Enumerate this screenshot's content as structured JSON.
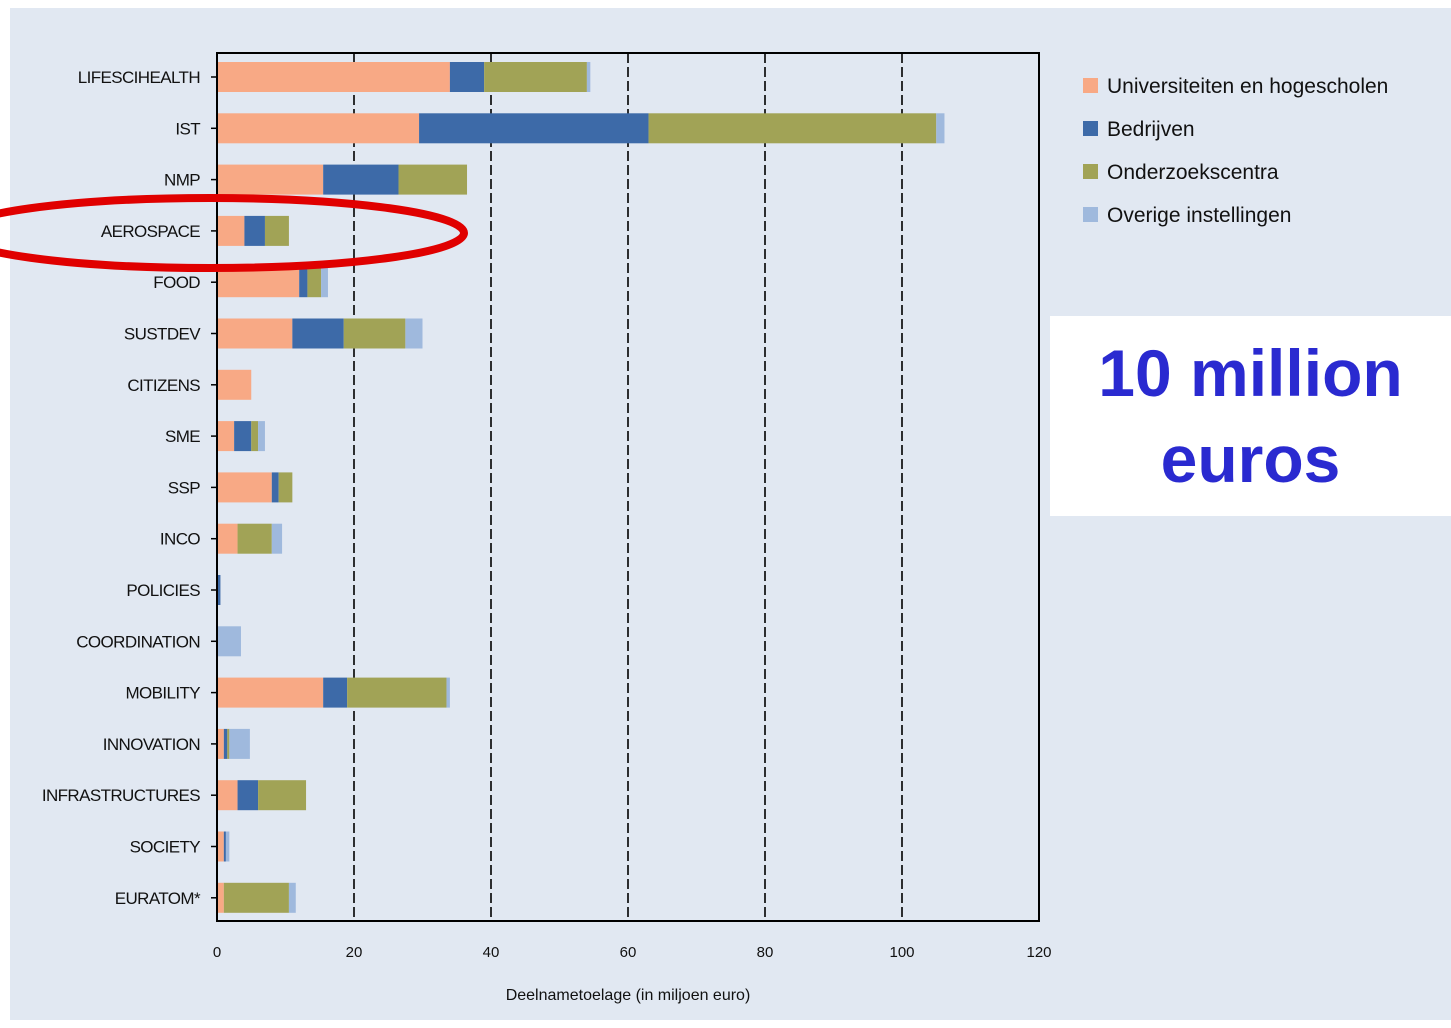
{
  "callout": {
    "line1": "10 million",
    "line2": "euros",
    "color": "#2a2ad0"
  },
  "highlight": {
    "category": "AEROSPACE",
    "color": "#e00000"
  },
  "chart_data": {
    "type": "bar",
    "orientation": "horizontal",
    "stacked": true,
    "categories": [
      "LIFESCIHEALTH",
      "IST",
      "NMP",
      "AEROSPACE",
      "FOOD",
      "SUSTDEV",
      "CITIZENS",
      "SME",
      "SSP",
      "INCO",
      "POLICIES",
      "COORDINATION",
      "MOBILITY",
      "INNOVATION",
      "INFRASTRUCTURES",
      "SOCIETY",
      "EURATOM*"
    ],
    "series": [
      {
        "name": "Universiteiten en hogescholen",
        "color": "#f8a985",
        "values": [
          34,
          29.5,
          15.5,
          4,
          12,
          11,
          5,
          2.5,
          8,
          3,
          0,
          0,
          15.5,
          1,
          3,
          1,
          1
        ]
      },
      {
        "name": "Bedrijven",
        "color": "#3d6aa8",
        "values": [
          5,
          33.5,
          11,
          3,
          1.2,
          7.5,
          0,
          2.5,
          1,
          0,
          0.5,
          0,
          3.5,
          0.5,
          3,
          0.3,
          0
        ]
      },
      {
        "name": "Onderzoekscentra",
        "color": "#a1a356",
        "values": [
          15,
          42,
          10,
          3.5,
          2,
          9,
          0,
          1,
          2,
          5,
          0,
          0,
          14.5,
          0.3,
          7,
          0,
          9.5
        ]
      },
      {
        "name": "Overige instellingen",
        "color": "#9fb9dd",
        "values": [
          0.5,
          1.2,
          0,
          0,
          1,
          2.5,
          0,
          1,
          0,
          1.5,
          0,
          3.5,
          0.5,
          3,
          0,
          0.5,
          1
        ]
      }
    ],
    "xlabel": "Deelnametoelage (in miljoen euro)",
    "ylabel": "",
    "xlim": [
      0,
      120
    ],
    "xticks": [
      0,
      20,
      40,
      60,
      80,
      100,
      120
    ],
    "grid": "vertical dashed",
    "legend": "right"
  }
}
